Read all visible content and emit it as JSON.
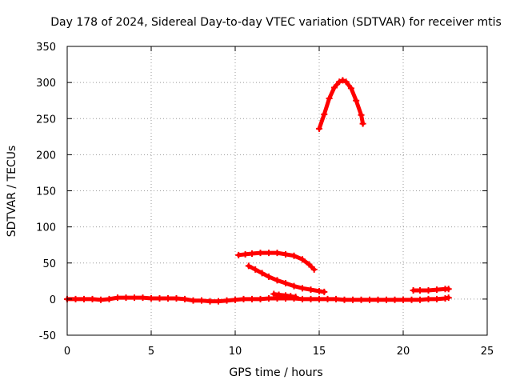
{
  "chart_data": {
    "type": "scatter",
    "title": "Day 178 of 2024, Sidereal Day-to-day VTEC variation (SDTVAR) for receiver mtis",
    "xlabel": "GPS time / hours",
    "ylabel": "SDTVAR / TECUs",
    "xlim": [
      0,
      25
    ],
    "ylim": [
      -50,
      350
    ],
    "xticks": [
      0,
      5,
      10,
      15,
      20,
      25
    ],
    "yticks": [
      -50,
      0,
      50,
      100,
      150,
      200,
      250,
      300,
      350
    ],
    "grid": true,
    "marker": "plus",
    "color": "#ff0000",
    "series": [
      {
        "x": [
          0.0,
          0.5,
          1.0,
          1.5,
          2.0,
          2.5,
          3.0,
          3.5,
          4.0,
          4.5,
          5.0,
          5.5,
          6.0,
          6.5,
          7.0,
          7.5,
          8.0,
          8.5,
          9.0,
          9.5,
          10.0,
          10.5,
          11.0,
          11.5,
          12.0,
          12.5,
          13.0,
          13.5,
          14.0,
          14.5,
          15.0,
          15.5,
          16.0,
          16.5,
          17.0,
          17.5,
          18.0,
          18.5,
          19.0,
          19.5,
          20.0,
          20.5,
          21.0,
          21.5,
          22.0,
          22.5,
          22.7
        ],
        "y": [
          0,
          0,
          0,
          0,
          -1,
          0,
          2,
          2,
          2,
          2,
          1,
          1,
          1,
          1,
          0,
          -2,
          -2,
          -3,
          -3,
          -2,
          -1,
          0,
          0,
          0,
          1,
          1,
          1,
          1,
          0,
          0,
          0,
          0,
          0,
          -1,
          -1,
          -1,
          -1,
          -1,
          -1,
          -1,
          -1,
          -1,
          -1,
          0,
          0,
          1,
          2
        ]
      },
      {
        "x": [
          10.2,
          10.6,
          11.0,
          11.5,
          12.0,
          12.5,
          13.0,
          13.5,
          14.0,
          14.4,
          14.7
        ],
        "y": [
          61,
          62,
          63,
          64,
          64,
          64,
          62,
          60,
          55,
          48,
          41
        ]
      },
      {
        "x": [
          10.8,
          11.2,
          11.6,
          12.0,
          12.5,
          13.0,
          13.5,
          14.0,
          14.5,
          15.0,
          15.3
        ],
        "y": [
          46,
          41,
          36,
          31,
          26,
          22,
          18,
          15,
          13,
          11,
          10
        ]
      },
      {
        "x": [
          12.3,
          12.6,
          13.0,
          13.3,
          13.6
        ],
        "y": [
          7,
          6,
          5,
          4,
          3
        ]
      },
      {
        "x": [
          15.0,
          15.3,
          15.6,
          15.9,
          16.2,
          16.4,
          16.6,
          16.9,
          17.2,
          17.5,
          17.6
        ],
        "y": [
          236,
          256,
          278,
          293,
          301,
          303,
          301,
          292,
          275,
          255,
          243
        ]
      },
      {
        "x": [
          20.6,
          21.0,
          21.5,
          22.0,
          22.5,
          22.7
        ],
        "y": [
          12,
          12,
          12,
          13,
          14,
          14
        ]
      }
    ]
  }
}
